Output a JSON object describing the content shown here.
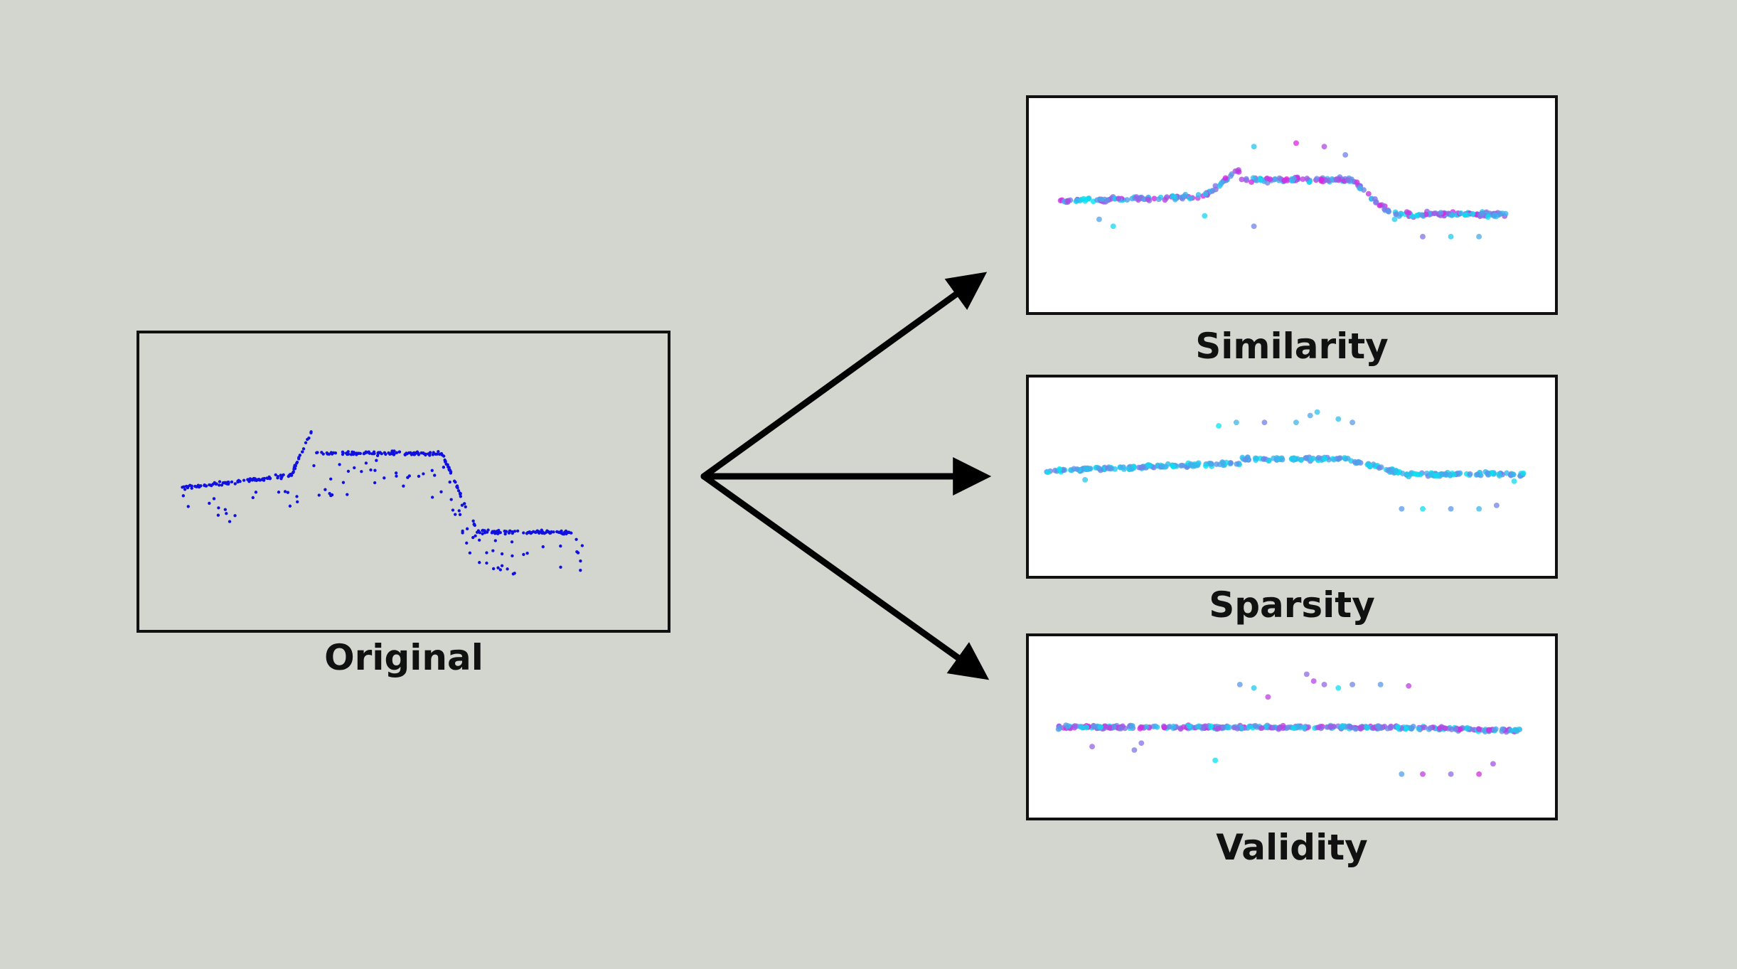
{
  "panels": {
    "original": {
      "label": "Original",
      "dot_color": "#1010e0"
    },
    "similarity": {
      "label": "Similarity"
    },
    "sparsity": {
      "label": "Sparsity"
    },
    "validity": {
      "label": "Validity"
    }
  },
  "colors": {
    "background": "#d3d6cf",
    "gradient_start": "#00e8f0",
    "gradient_end": "#e020e0",
    "arrow": "#000000"
  }
}
